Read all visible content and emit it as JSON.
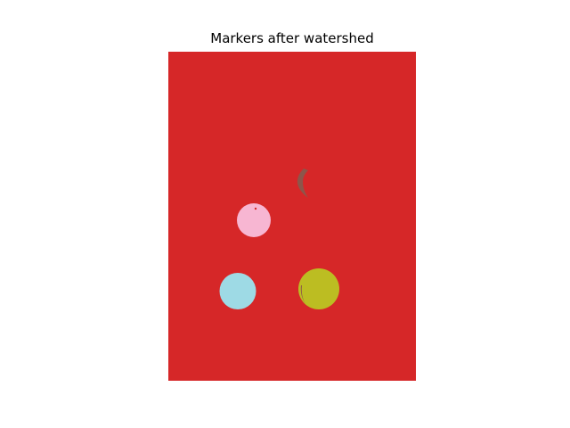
{
  "figure": {
    "title": "Markers after watershed"
  },
  "image": {
    "background_label_color": "#d62728",
    "regions": [
      {
        "name": "pink-blob",
        "color": "#f7b6d2"
      },
      {
        "name": "cyan-blob",
        "color": "#9edae5"
      },
      {
        "name": "olive-blob",
        "color": "#bcbd22"
      },
      {
        "name": "brown-sliver",
        "color": "#8c564b"
      }
    ]
  }
}
